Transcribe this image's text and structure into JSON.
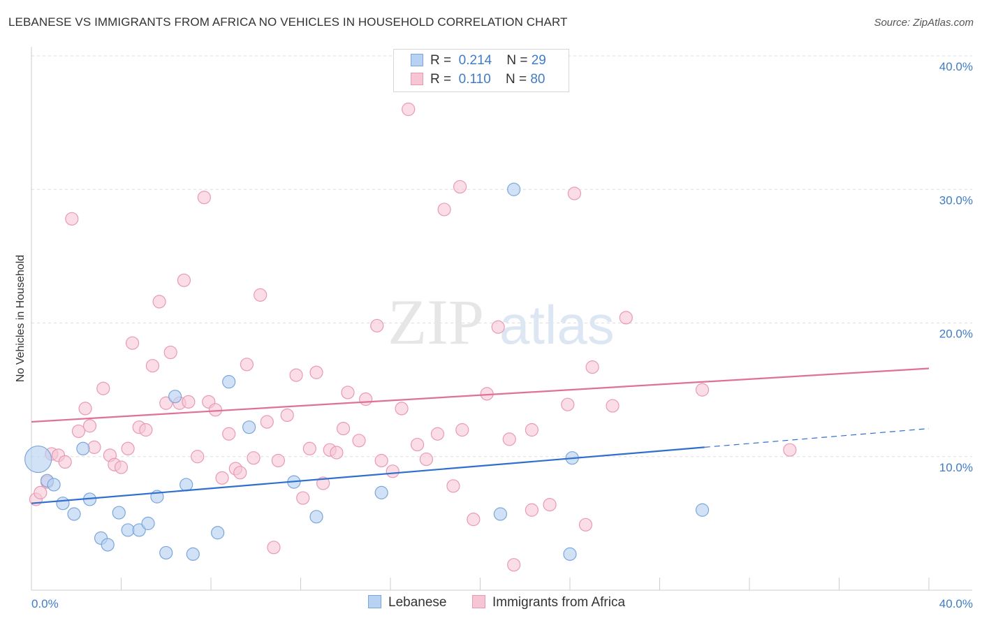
{
  "title": "LEBANESE VS IMMIGRANTS FROM AFRICA NO VEHICLES IN HOUSEHOLD CORRELATION CHART",
  "source": "Source: ZipAtlas.com",
  "watermark": {
    "zip": "ZIP",
    "atlas": "atlas"
  },
  "legend_top": [
    {
      "r_label": "R =",
      "r_value": "0.214",
      "n_label": "N =",
      "n_value": "29"
    },
    {
      "r_label": "R =",
      "r_value": "0.110",
      "n_label": "N =",
      "n_value": "80"
    }
  ],
  "legend_bottom": [
    "Lebanese",
    "Immigrants from Africa"
  ],
  "colors": {
    "lebanese_fill": "#b8d2f3",
    "lebanese_stroke": "#7aa6dc",
    "lebanese_line": "#2f6fce",
    "africa_fill": "#f7c6d5",
    "africa_stroke": "#e99ab3",
    "africa_line": "#e0709a",
    "tick_text": "#3f7cc7",
    "grid": "#dddddd"
  },
  "chart_data": {
    "type": "scatter",
    "title": "LEBANESE VS IMMIGRANTS FROM AFRICA NO VEHICLES IN HOUSEHOLD CORRELATION CHART",
    "xlabel": "",
    "ylabel": "No Vehicles in Household",
    "xlim": [
      0,
      40
    ],
    "ylim": [
      0,
      40
    ],
    "x_tick_labels": [
      "0.0%",
      "40.0%"
    ],
    "y_ticks": [
      {
        "value": 10,
        "label": "10.0%"
      },
      {
        "value": 20,
        "label": "20.0%"
      },
      {
        "value": 30,
        "label": "30.0%"
      },
      {
        "value": 40,
        "label": "40.0%"
      }
    ],
    "grid": true,
    "legend_position": "top-center",
    "series": [
      {
        "name": "Lebanese",
        "r": 0.214,
        "n": 29,
        "trend": {
          "x0": 0,
          "y0": 6.5,
          "x1": 30,
          "y1": 10.7,
          "dashed_to_x": 40,
          "dashed_to_y": 12.1
        },
        "points": [
          [
            0.3,
            9.8
          ],
          [
            0.7,
            8.2
          ],
          [
            1.0,
            7.9
          ],
          [
            1.4,
            6.5
          ],
          [
            1.9,
            5.7
          ],
          [
            2.3,
            10.6
          ],
          [
            2.6,
            6.8
          ],
          [
            3.1,
            3.9
          ],
          [
            3.4,
            3.4
          ],
          [
            3.9,
            5.8
          ],
          [
            4.3,
            4.5
          ],
          [
            4.8,
            4.5
          ],
          [
            5.2,
            5.0
          ],
          [
            5.6,
            7.0
          ],
          [
            6.0,
            2.8
          ],
          [
            6.4,
            14.5
          ],
          [
            6.9,
            7.9
          ],
          [
            7.2,
            2.7
          ],
          [
            8.3,
            4.3
          ],
          [
            8.8,
            15.6
          ],
          [
            9.7,
            12.2
          ],
          [
            11.7,
            8.1
          ],
          [
            12.7,
            5.5
          ],
          [
            15.6,
            7.3
          ],
          [
            20.9,
            5.7
          ],
          [
            21.5,
            30.0
          ],
          [
            24.0,
            2.7
          ],
          [
            24.1,
            9.9
          ],
          [
            29.9,
            6.0
          ]
        ],
        "sizes": [
          3,
          1,
          1,
          1,
          1,
          1,
          1,
          1,
          1,
          1,
          1,
          1,
          1,
          1,
          1,
          1,
          1,
          1,
          1,
          1,
          1,
          1,
          1,
          1,
          1,
          1,
          1,
          1,
          1
        ]
      },
      {
        "name": "Immigrants from Africa",
        "r": 0.11,
        "n": 80,
        "trend": {
          "x0": 0,
          "y0": 12.6,
          "x1": 40,
          "y1": 16.6
        },
        "points": [
          [
            0.2,
            6.8
          ],
          [
            0.4,
            7.3
          ],
          [
            0.7,
            8.1
          ],
          [
            0.9,
            10.2
          ],
          [
            1.2,
            10.1
          ],
          [
            1.5,
            9.6
          ],
          [
            1.8,
            27.8
          ],
          [
            2.1,
            11.9
          ],
          [
            2.4,
            13.6
          ],
          [
            2.6,
            12.3
          ],
          [
            2.8,
            10.7
          ],
          [
            3.2,
            15.1
          ],
          [
            3.5,
            10.1
          ],
          [
            3.7,
            9.4
          ],
          [
            4.0,
            9.2
          ],
          [
            4.3,
            10.6
          ],
          [
            4.5,
            18.5
          ],
          [
            4.8,
            12.2
          ],
          [
            5.1,
            12.0
          ],
          [
            5.4,
            16.8
          ],
          [
            5.7,
            21.6
          ],
          [
            6.0,
            14.0
          ],
          [
            6.2,
            17.8
          ],
          [
            6.6,
            14.0
          ],
          [
            6.8,
            23.2
          ],
          [
            7.0,
            14.1
          ],
          [
            7.4,
            10.0
          ],
          [
            7.7,
            29.4
          ],
          [
            7.9,
            14.1
          ],
          [
            8.2,
            13.5
          ],
          [
            8.5,
            8.4
          ],
          [
            8.8,
            11.7
          ],
          [
            9.1,
            9.1
          ],
          [
            9.3,
            8.8
          ],
          [
            9.6,
            16.9
          ],
          [
            9.9,
            9.9
          ],
          [
            10.2,
            22.1
          ],
          [
            10.5,
            12.6
          ],
          [
            10.8,
            3.2
          ],
          [
            11.0,
            9.7
          ],
          [
            11.4,
            13.1
          ],
          [
            11.8,
            16.1
          ],
          [
            12.1,
            6.9
          ],
          [
            12.4,
            10.6
          ],
          [
            12.7,
            16.3
          ],
          [
            13.0,
            8.0
          ],
          [
            13.3,
            10.5
          ],
          [
            13.6,
            10.3
          ],
          [
            13.9,
            12.1
          ],
          [
            14.1,
            14.8
          ],
          [
            14.6,
            11.2
          ],
          [
            14.9,
            14.3
          ],
          [
            15.4,
            19.8
          ],
          [
            15.6,
            9.7
          ],
          [
            16.1,
            8.9
          ],
          [
            16.5,
            13.6
          ],
          [
            16.8,
            36.0
          ],
          [
            17.2,
            10.9
          ],
          [
            17.6,
            9.8
          ],
          [
            18.1,
            11.7
          ],
          [
            18.4,
            28.5
          ],
          [
            18.8,
            7.8
          ],
          [
            19.1,
            30.2
          ],
          [
            19.2,
            12.0
          ],
          [
            19.7,
            5.3
          ],
          [
            20.3,
            14.7
          ],
          [
            20.8,
            19.7
          ],
          [
            21.3,
            11.3
          ],
          [
            21.5,
            1.9
          ],
          [
            22.3,
            6.0
          ],
          [
            23.1,
            6.4
          ],
          [
            23.9,
            13.9
          ],
          [
            24.2,
            29.7
          ],
          [
            24.7,
            4.9
          ],
          [
            25.0,
            16.7
          ],
          [
            25.9,
            13.8
          ],
          [
            26.5,
            20.4
          ],
          [
            29.9,
            15.0
          ],
          [
            33.8,
            10.5
          ],
          [
            22.3,
            12.0
          ]
        ]
      }
    ]
  }
}
